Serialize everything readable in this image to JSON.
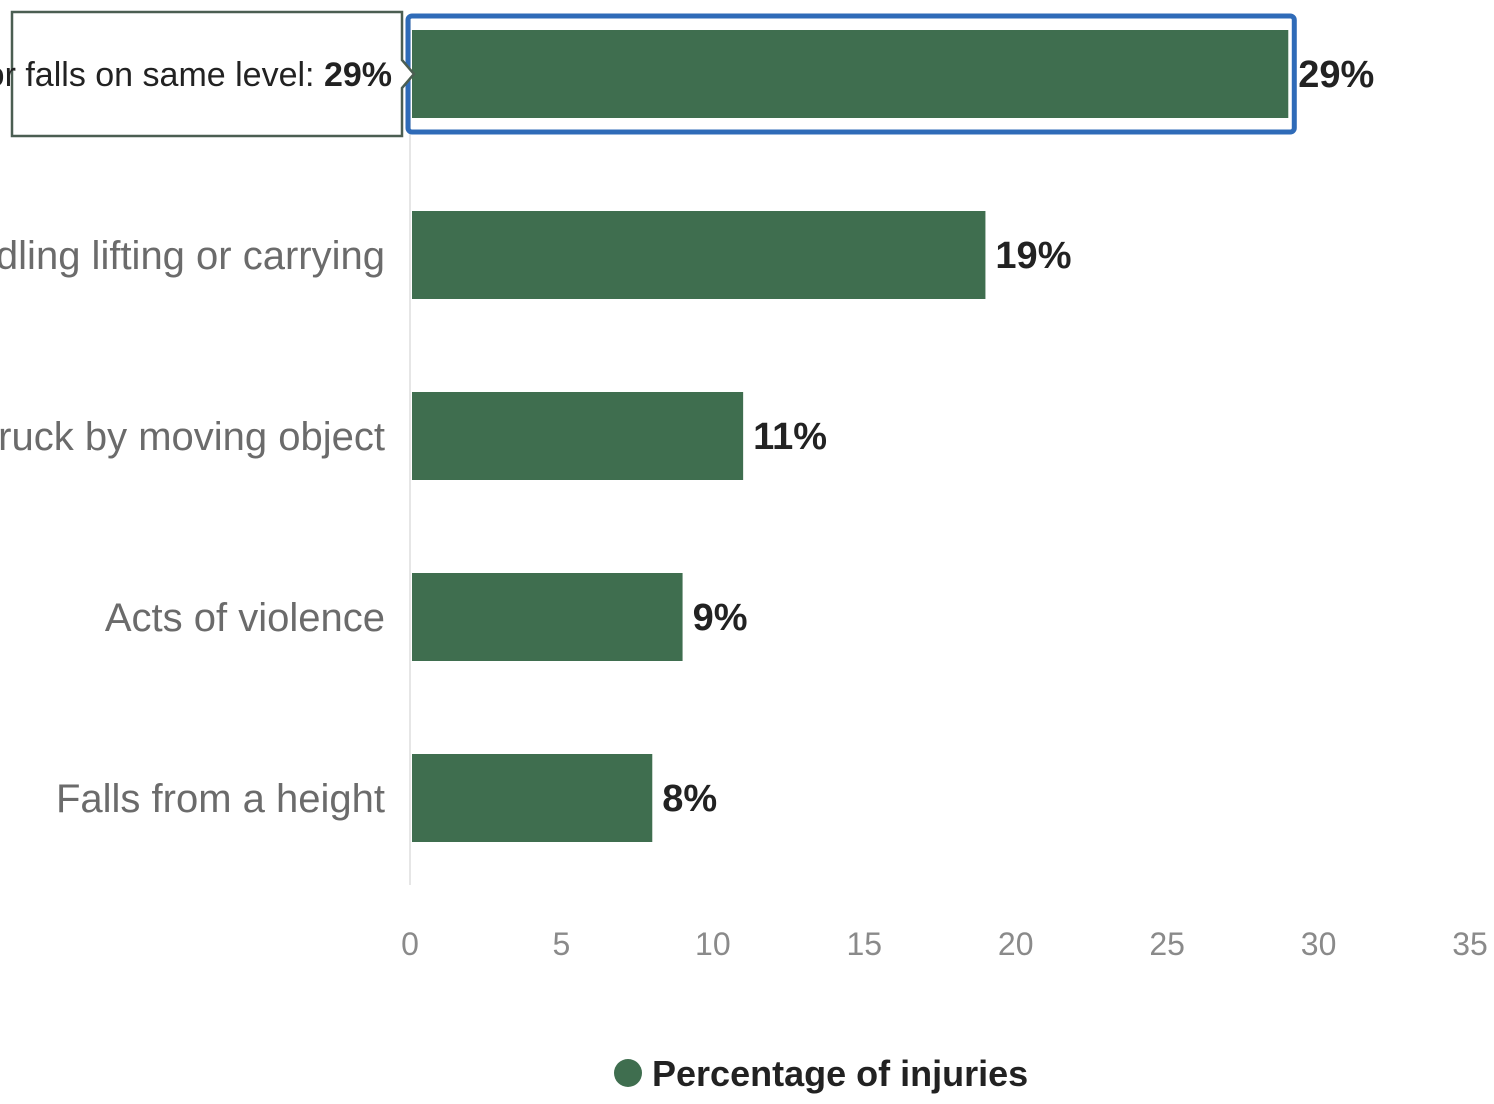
{
  "chart_data": {
    "type": "bar",
    "orientation": "horizontal",
    "categories": [
      "Slips trips or falls on same level",
      "Handling lifting or carrying",
      "Struck by moving object",
      "Acts of violence",
      "Falls from a height"
    ],
    "values": [
      29,
      19,
      11,
      9,
      8
    ],
    "value_labels": [
      "29%",
      "19%",
      "11%",
      "9%",
      "8%"
    ],
    "series": [
      {
        "name": "Percentage of injuries",
        "values": [
          29,
          19,
          11,
          9,
          8
        ]
      }
    ],
    "xlim": [
      0,
      35
    ],
    "x_ticks": [
      "0",
      "5",
      "10",
      "15",
      "20",
      "25",
      "30",
      "35"
    ],
    "x_tick_values": [
      0,
      5,
      10,
      15,
      20,
      25,
      30,
      35
    ],
    "grid": false,
    "legend": {
      "entries": [
        "Percentage of injuries"
      ],
      "placement": "bottom-center"
    },
    "highlighted_index": 0,
    "tooltip": {
      "label": "Slips trips or falls on same level: ",
      "value": "29%"
    },
    "colors": {
      "bar": "#3f6e4f",
      "highlight_outline": "#2f6bb8",
      "legend_marker": "#3f6e4f"
    }
  }
}
